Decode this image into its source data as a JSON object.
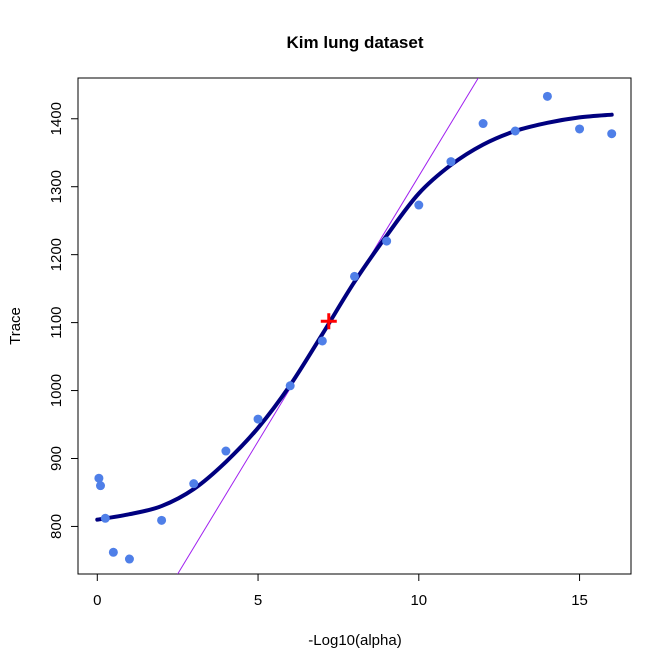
{
  "chart_data": {
    "type": "scatter",
    "title": "Kim lung dataset",
    "xlabel": "-Log10(alpha)",
    "ylabel": "Trace",
    "xlim": [
      -0.6,
      16.6
    ],
    "ylim": [
      730,
      1460
    ],
    "xticks": [
      0,
      5,
      10,
      15
    ],
    "yticks": [
      800,
      900,
      1000,
      1100,
      1200,
      1300,
      1400
    ],
    "grid": false,
    "legend": "none",
    "colors": {
      "points": "#4F7FE8",
      "fit": "#00007F",
      "tangent": "#A020F0",
      "marker": "#FF0000"
    },
    "series": [
      {
        "kind": "points",
        "x": [
          0.05,
          0.1,
          0.25,
          0.5,
          1,
          2,
          3,
          4,
          5,
          6,
          7,
          8,
          9,
          10,
          11,
          12,
          13,
          14,
          15,
          16
        ],
        "y": [
          871,
          860,
          812,
          762,
          752,
          809,
          863,
          911,
          958,
          1007,
          1073,
          1168,
          1220,
          1273,
          1337,
          1393,
          1382,
          1433,
          1385,
          1378
        ]
      },
      {
        "kind": "fit-curve",
        "x": [
          0,
          1,
          2,
          3,
          4,
          5,
          6,
          7,
          8,
          9,
          10,
          11,
          12,
          13,
          14,
          15,
          16
        ],
        "y": [
          810,
          818,
          830,
          855,
          895,
          945,
          1008,
          1083,
          1160,
          1228,
          1290,
          1332,
          1362,
          1382,
          1394,
          1402,
          1406
        ]
      },
      {
        "kind": "tangent-line",
        "x": [
          2.5,
          11.85
        ],
        "y": [
          730,
          1460
        ]
      },
      {
        "kind": "marker",
        "x": [
          7.2
        ],
        "y": [
          1102
        ]
      }
    ]
  }
}
